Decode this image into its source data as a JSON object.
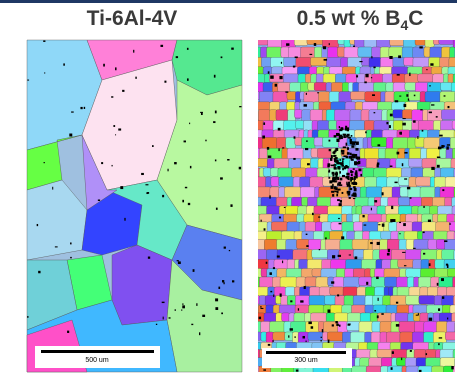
{
  "panels": [
    {
      "title": "Ti-6Al-4V",
      "scale_bar": "500 um"
    },
    {
      "title": {
        "text": "0.5 wt % B",
        "sub": "4",
        "tail": "C"
      },
      "scale_bar": "300 um"
    }
  ]
}
